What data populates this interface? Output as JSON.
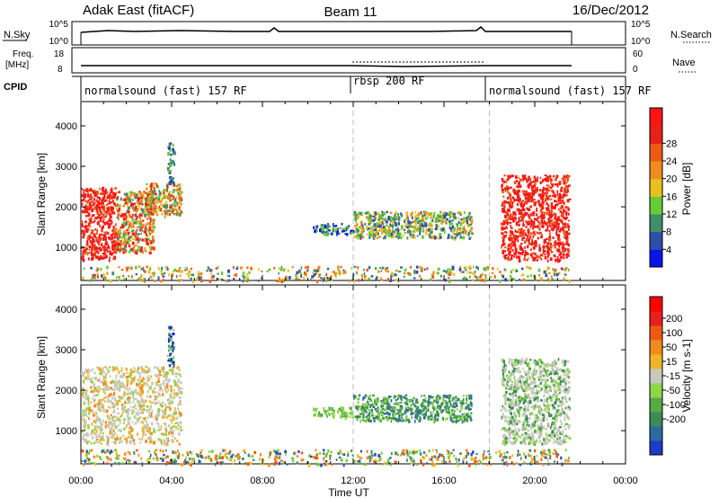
{
  "header": {
    "station": "Adak East (fitACF)",
    "beam": "Beam 11",
    "date": "16/Dec/2012"
  },
  "panels": {
    "nsky": {
      "label": "N.Sky",
      "tick_top": "10^5",
      "tick_bottom": "10^0",
      "right_label": "N.Search",
      "right_tick_top": "10^5",
      "right_tick_bottom": "10^0"
    },
    "freq": {
      "label_line1": "Freq.",
      "label_line2": "[MHz]",
      "tick_top": "18",
      "tick_bottom": "8",
      "right_label": "Nave",
      "right_tick_top": "60",
      "right_tick_bottom": "0"
    },
    "cpid": {
      "label": "CPID",
      "segments": [
        {
          "label": "normalsound (fast) 157 RF",
          "start_hour": 0,
          "end_hour": 12
        },
        {
          "label": "rbsp 200 RF",
          "start_hour": 12,
          "end_hour": 18
        },
        {
          "label": "normalsound (fast) 157 RF",
          "start_hour": 18,
          "end_hour": 24
        }
      ]
    }
  },
  "colorbars": {
    "power": {
      "title": "Power [dB]",
      "ticks": [
        "4",
        "8",
        "12",
        "16",
        "20",
        "24",
        "28"
      ],
      "colors": [
        "#0a14e6",
        "#2d4fa8",
        "#3f8f6b",
        "#66cc33",
        "#e8c020",
        "#f08c1e",
        "#ee5a14",
        "#e8201a",
        "#ff1414"
      ]
    },
    "velocity": {
      "title": "Velocity [m s-1]",
      "ticks": [
        "200",
        "100",
        "50",
        "15",
        "-15",
        "-50",
        "-100",
        "-200"
      ],
      "colors": [
        "#1a3cc8",
        "#2d6aa0",
        "#3a8a5a",
        "#55aa44",
        "#8fd648",
        "#c8c8be",
        "#f0b428",
        "#f08c1e",
        "#ee5a14",
        "#e8201a",
        "#ff0000"
      ]
    }
  },
  "chart_data": [
    {
      "type": "heatmap",
      "name": "Power",
      "xlabel": "",
      "ylabel": "Slant Range [km]",
      "xlim": [
        0,
        24
      ],
      "ylim": [
        180,
        4600
      ],
      "yticks": [
        1000,
        2000,
        3000,
        4000
      ],
      "grid_vertical_hours": [
        12,
        18
      ],
      "echo_regions": [
        {
          "x0": 0.0,
          "x1": 1.5,
          "y0": 700,
          "y1": 2500,
          "level": "red"
        },
        {
          "x0": 1.5,
          "x1": 3.2,
          "y0": 900,
          "y1": 2400,
          "level": "mixed"
        },
        {
          "x0": 2.8,
          "x1": 4.4,
          "y0": 1800,
          "y1": 2600,
          "level": "orange"
        },
        {
          "x0": 3.8,
          "x1": 4.1,
          "y0": 2600,
          "y1": 3600,
          "level": "blue"
        },
        {
          "x0": 10.2,
          "x1": 12.0,
          "y0": 1350,
          "y1": 1600,
          "level": "blue"
        },
        {
          "x0": 12.0,
          "x1": 17.2,
          "y0": 1250,
          "y1": 1900,
          "level": "green"
        },
        {
          "x0": 18.5,
          "x1": 21.5,
          "y0": 700,
          "y1": 2800,
          "level": "red"
        },
        {
          "x0": 0.0,
          "x1": 21.5,
          "y0": 180,
          "y1": 550,
          "level": "ground"
        }
      ]
    },
    {
      "type": "heatmap",
      "name": "Velocity",
      "xlabel": "Time UT",
      "ylabel": "Slant Range [km]",
      "xlim": [
        0,
        24
      ],
      "ylim": [
        180,
        4600
      ],
      "xticks": [
        "00:00",
        "04:00",
        "08:00",
        "12:00",
        "16:00",
        "20:00",
        "00:00"
      ],
      "yticks": [
        1000,
        2000,
        3000,
        4000
      ],
      "grid_vertical_hours": [
        12,
        18
      ],
      "echo_regions": [
        {
          "x0": 0.0,
          "x1": 4.4,
          "y0": 700,
          "y1": 2600,
          "level": "gray"
        },
        {
          "x0": 3.8,
          "x1": 4.1,
          "y0": 2600,
          "y1": 3600,
          "level": "blue"
        },
        {
          "x0": 10.2,
          "x1": 12.0,
          "y0": 1350,
          "y1": 1600,
          "level": "lightgreen"
        },
        {
          "x0": 12.0,
          "x1": 17.2,
          "y0": 1250,
          "y1": 1900,
          "level": "darkgreen"
        },
        {
          "x0": 18.5,
          "x1": 21.5,
          "y0": 700,
          "y1": 2800,
          "level": "graygreen"
        },
        {
          "x0": 0.0,
          "x1": 21.5,
          "y0": 180,
          "y1": 550,
          "level": "ground"
        }
      ]
    }
  ]
}
